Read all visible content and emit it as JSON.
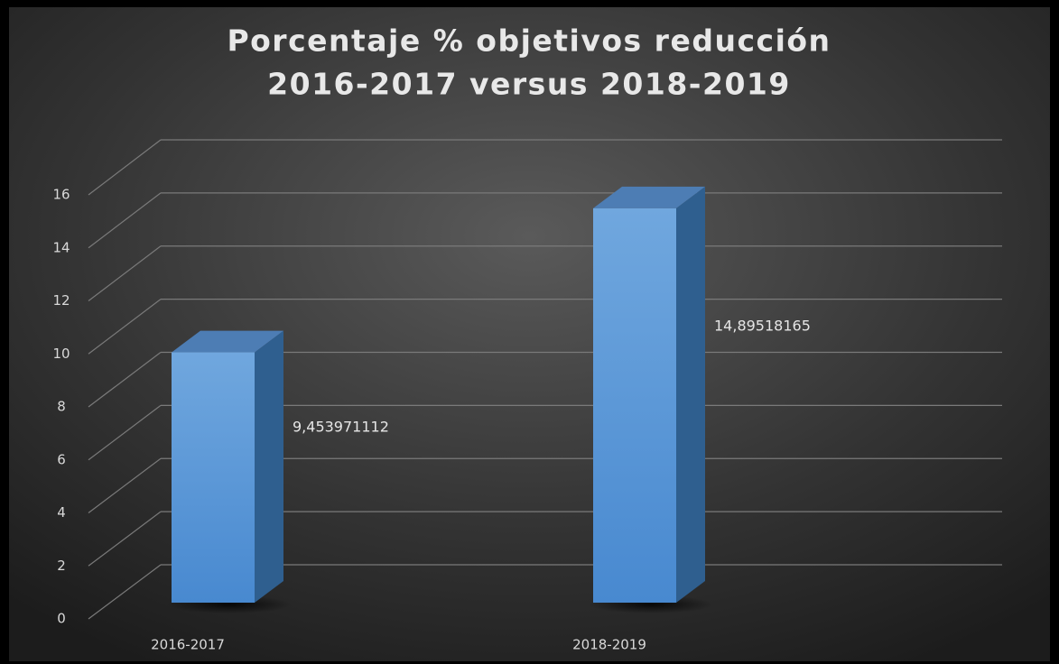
{
  "chart_data": {
    "type": "bar3d",
    "title": [
      "Porcentaje % objetivos reducción",
      "2016-2017 versus 2018-2019"
    ],
    "categories": [
      "2016-2017",
      "2018-2019"
    ],
    "values": [
      9.453971112,
      14.89518165
    ],
    "value_labels": [
      "9,453971112",
      "14,89518165"
    ],
    "color": "#5b9bd5",
    "ylim": [
      0,
      16
    ],
    "yticks": [
      0,
      2,
      4,
      6,
      8,
      10,
      12,
      14,
      16
    ],
    "grid": true
  }
}
